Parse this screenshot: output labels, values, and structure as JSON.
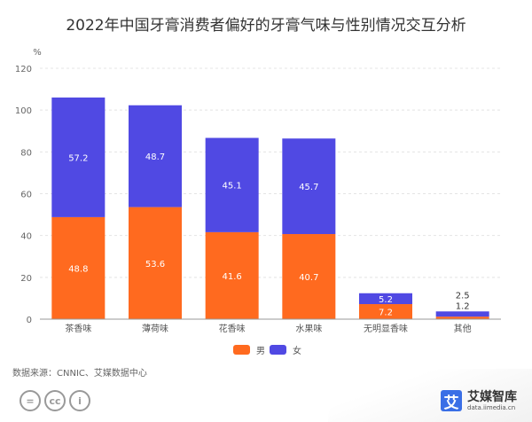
{
  "chart_data": {
    "type": "bar",
    "stacked": true,
    "title": "2022年中国牙膏消费者偏好的牙膏气味与性别情况交互分析",
    "ylabel": "%",
    "ylim": [
      0,
      120
    ],
    "yticks": [
      0,
      20,
      40,
      60,
      80,
      100,
      120
    ],
    "grid": true,
    "legend_position": "bottom",
    "categories": [
      "茶香味",
      "薄荷味",
      "花香味",
      "水果味",
      "无明显香味",
      "其他"
    ],
    "series": [
      {
        "name": "男",
        "color": "#FF6A1F",
        "values": [
          48.8,
          53.6,
          41.6,
          40.7,
          7.2,
          1.2
        ]
      },
      {
        "name": "女",
        "color": "#5049E3",
        "values": [
          57.2,
          48.7,
          45.1,
          45.7,
          5.2,
          2.5
        ]
      }
    ]
  },
  "footer": {
    "source": "数据来源：CNNIC、艾媒数据中心",
    "cc_icons": [
      "nd-icon",
      "cc-icon",
      "by-icon"
    ],
    "logo_mark": "艾",
    "logo_name": "艾媒智库",
    "logo_url": "data.iimedia.cn"
  }
}
